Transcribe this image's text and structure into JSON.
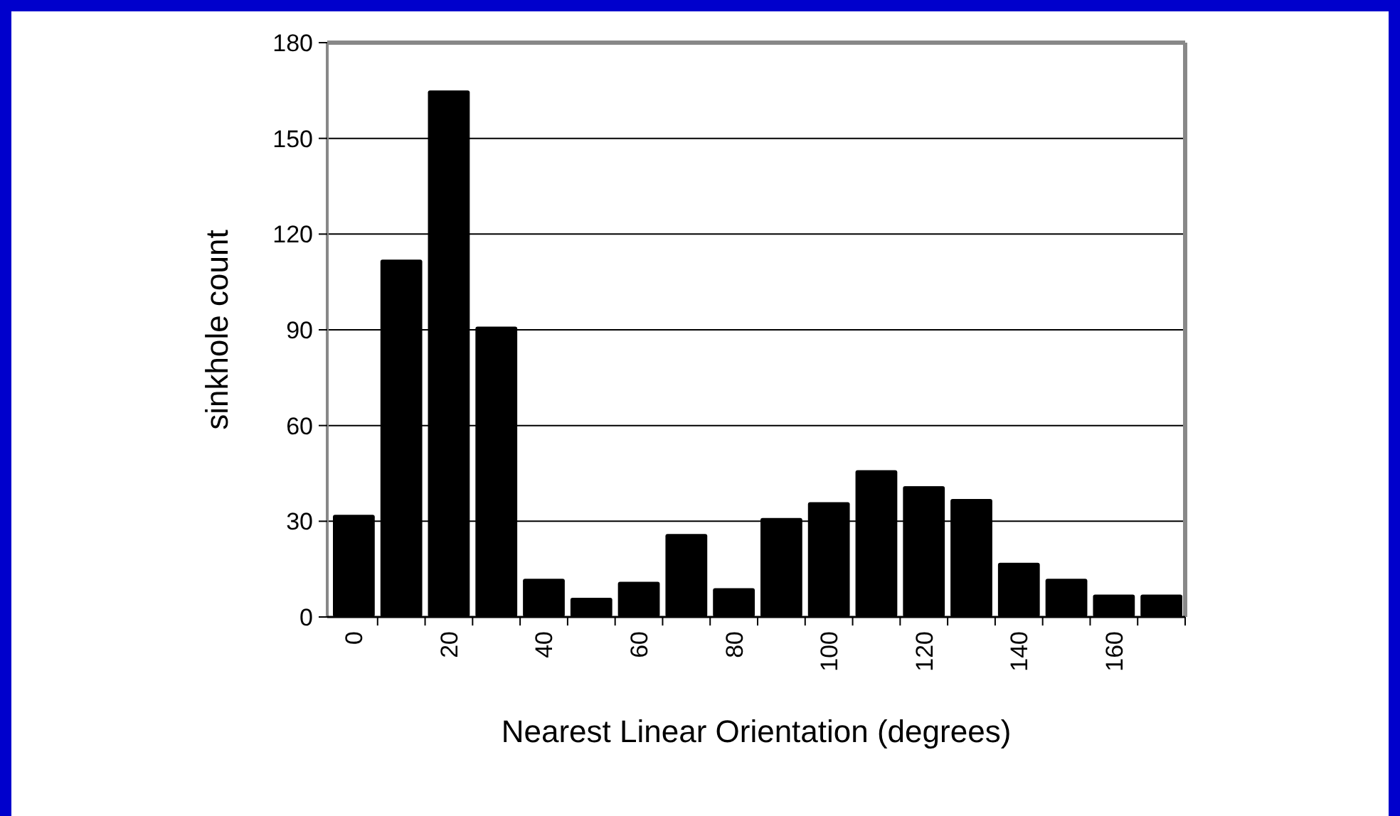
{
  "chart_data": {
    "type": "bar",
    "categories": [
      "0",
      null,
      "20",
      null,
      "40",
      null,
      "60",
      null,
      "80",
      null,
      "100",
      null,
      "120",
      null,
      "140",
      null,
      "160",
      null
    ],
    "values": [
      32,
      112,
      165,
      91,
      12,
      6,
      11,
      26,
      9,
      31,
      36,
      46,
      41,
      37,
      17,
      12,
      7,
      7
    ],
    "color": "#000000",
    "ylim": [
      0,
      180
    ],
    "yticks": [
      0,
      30,
      60,
      90,
      120,
      150,
      180
    ],
    "grid": "y",
    "xlabel": "Nearest Linear Orientation (degrees)",
    "ylabel": "sinkhole count"
  }
}
